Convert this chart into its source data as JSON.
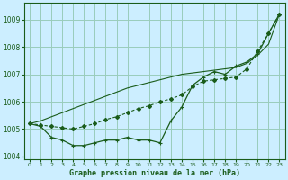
{
  "x": [
    0,
    1,
    2,
    3,
    4,
    5,
    6,
    7,
    8,
    9,
    10,
    11,
    12,
    13,
    14,
    15,
    16,
    17,
    18,
    19,
    20,
    21,
    22,
    23
  ],
  "line_straight": [
    1005.2,
    1005.3,
    1005.45,
    1005.6,
    1005.75,
    1005.9,
    1006.05,
    1006.2,
    1006.35,
    1006.5,
    1006.6,
    1006.7,
    1006.8,
    1006.9,
    1007.0,
    1007.05,
    1007.1,
    1007.15,
    1007.2,
    1007.25,
    1007.4,
    1007.7,
    1008.1,
    1009.2
  ],
  "line_dip": [
    1005.2,
    1005.1,
    1004.7,
    1004.6,
    1004.4,
    1004.4,
    1004.5,
    1004.6,
    1004.6,
    1004.7,
    1004.6,
    1004.6,
    1004.5,
    1005.3,
    1005.8,
    1006.6,
    1006.9,
    1007.1,
    1007.0,
    1007.3,
    1007.45,
    1007.75,
    1008.5,
    1009.2
  ],
  "line_upper": [
    1005.2,
    1005.15,
    1005.1,
    1005.05,
    1005.0,
    1005.1,
    1005.2,
    1005.35,
    1005.45,
    1005.6,
    1005.75,
    1005.85,
    1006.0,
    1006.1,
    1006.25,
    1006.55,
    1006.75,
    1006.8,
    1006.85,
    1006.9,
    1007.2,
    1007.85,
    1008.5,
    1009.2
  ],
  "bg_color": "#cceeff",
  "grid_color": "#99ccbb",
  "line_color": "#1a5c1a",
  "ylim": [
    1003.9,
    1009.6
  ],
  "yticks": [
    1004,
    1005,
    1006,
    1007,
    1008,
    1009
  ],
  "xlabel": "Graphe pression niveau de la mer (hPa)"
}
